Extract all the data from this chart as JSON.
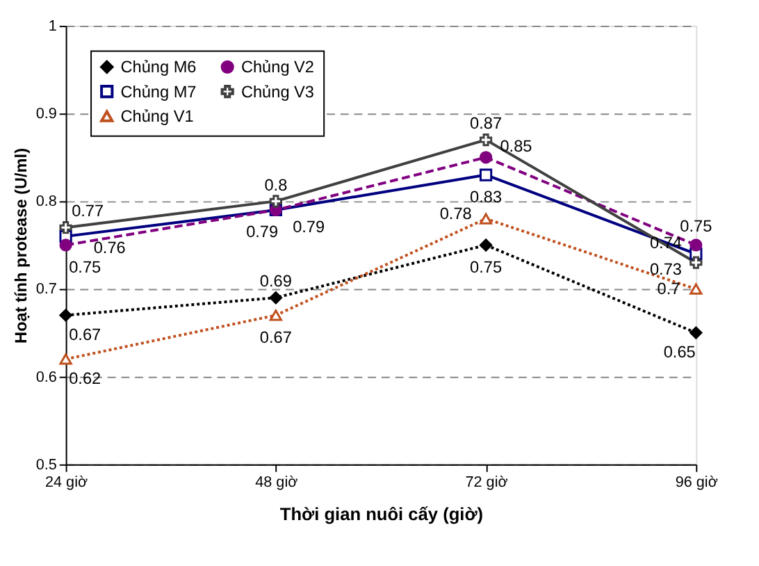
{
  "chart_data": {
    "type": "line",
    "xlabel": "Thời gian nuôi cấy (giờ)",
    "ylabel": "Hoạt tính protease (U/ml)",
    "categories": [
      "24 giờ",
      "48 giờ",
      "72 giờ",
      "96 giờ"
    ],
    "series": [
      {
        "name": "Chủng M6",
        "color": "#000000",
        "values": [
          0.67,
          0.69,
          0.75,
          0.65
        ],
        "marker": "diamond",
        "line_style": "dotted"
      },
      {
        "name": "Chủng M7",
        "color": "#000080",
        "values": [
          0.76,
          0.79,
          0.83,
          0.74
        ],
        "marker": "square",
        "line_style": "solid"
      },
      {
        "name": "Chủng V1",
        "color": "#c0501e",
        "values": [
          0.62,
          0.67,
          0.78,
          0.7
        ],
        "marker": "triangle",
        "line_style": "dotted"
      },
      {
        "name": "Chủng V2",
        "color": "#800080",
        "values": [
          0.75,
          0.79,
          0.85,
          0.75
        ],
        "marker": "circle",
        "line_style": "dashed"
      },
      {
        "name": "Chủng V3",
        "color": "#404040",
        "values": [
          0.77,
          0.8,
          0.87,
          0.73
        ],
        "marker": "cross",
        "line_style": "solid"
      }
    ],
    "ylim": [
      0.5,
      1
    ],
    "yticks": [
      0.5,
      0.6,
      0.7,
      0.8,
      0.9,
      1
    ],
    "grid": "y",
    "legend": "top left",
    "data_labels": true
  }
}
